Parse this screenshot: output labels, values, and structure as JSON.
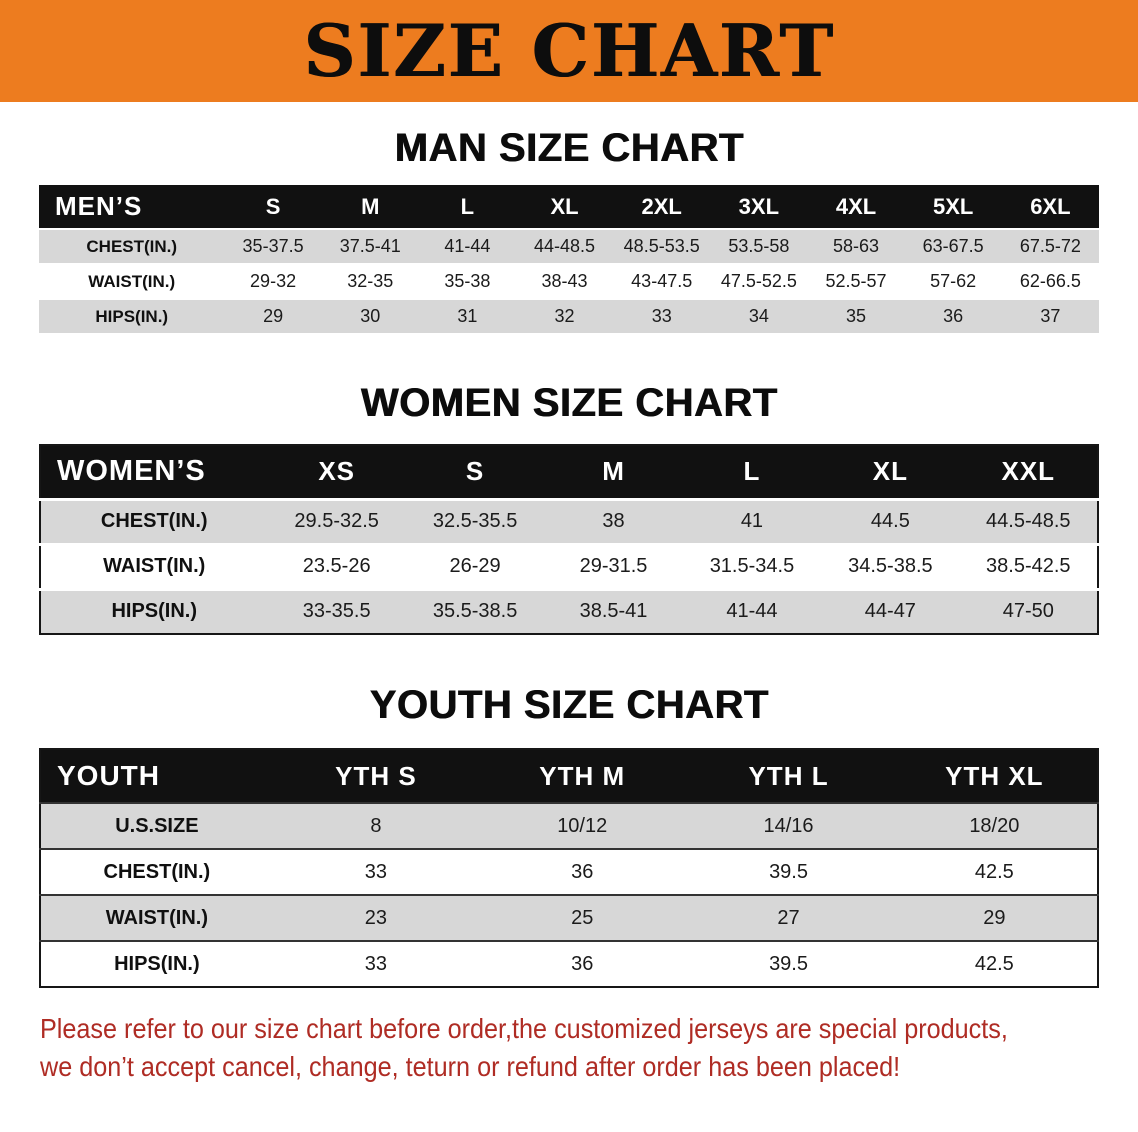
{
  "banner": {
    "title": "SIZE CHART"
  },
  "sections": [
    {
      "id": "men",
      "heading": "MAN SIZE CHART",
      "columns": [
        "MEN’S",
        "S",
        "M",
        "L",
        "XL",
        "2XL",
        "3XL",
        "4XL",
        "5XL",
        "6XL"
      ],
      "rows": [
        [
          "CHEST(IN.)",
          "35-37.5",
          "37.5-41",
          "41-44",
          "44-48.5",
          "48.5-53.5",
          "53.5-58",
          "58-63",
          "63-67.5",
          "67.5-72"
        ],
        [
          "WAIST(IN.)",
          "29-32",
          "32-35",
          "35-38",
          "38-43",
          "43-47.5",
          "47.5-52.5",
          "52.5-57",
          "57-62",
          "62-66.5"
        ],
        [
          "HIPS(IN.)",
          "29",
          "30",
          "31",
          "32",
          "33",
          "34",
          "35",
          "36",
          "37"
        ]
      ]
    },
    {
      "id": "women",
      "heading": "WOMEN SIZE CHART",
      "columns": [
        "WOMEN’S",
        "XS",
        "S",
        "M",
        "L",
        "XL",
        "XXL"
      ],
      "rows": [
        [
          "CHEST(IN.)",
          "29.5-32.5",
          "32.5-35.5",
          "38",
          "41",
          "44.5",
          "44.5-48.5"
        ],
        [
          "WAIST(IN.)",
          "23.5-26",
          "26-29",
          "29-31.5",
          "31.5-34.5",
          "34.5-38.5",
          "38.5-42.5"
        ],
        [
          "HIPS(IN.)",
          "33-35.5",
          "35.5-38.5",
          "38.5-41",
          "41-44",
          "44-47",
          "47-50"
        ]
      ]
    },
    {
      "id": "youth",
      "heading": "YOUTH SIZE CHART",
      "columns": [
        "YOUTH",
        "YTH S",
        "YTH M",
        "YTH L",
        "YTH XL"
      ],
      "rows": [
        [
          "U.S.SIZE",
          "8",
          "10/12",
          "14/16",
          "18/20"
        ],
        [
          "CHEST(IN.)",
          "33",
          "36",
          "39.5",
          "42.5"
        ],
        [
          "WAIST(IN.)",
          "23",
          "25",
          "27",
          "29"
        ],
        [
          "HIPS(IN.)",
          "33",
          "36",
          "39.5",
          "42.5"
        ]
      ]
    }
  ],
  "footer": {
    "lines": [
      "Please refer to our size chart before order,the customized jerseys are special products,",
      "we don’t accept cancel, change, teturn or refund after order has been placed!"
    ]
  },
  "colors": {
    "banner_bg": "#ED7C1F",
    "banner_text": "#0D0D0D",
    "table_header_bg": "#111111",
    "table_header_text": "#FFFFFF",
    "row_gray": "#D7D7D7",
    "row_white": "#FFFFFF",
    "notice_red": "#AF2C24"
  }
}
